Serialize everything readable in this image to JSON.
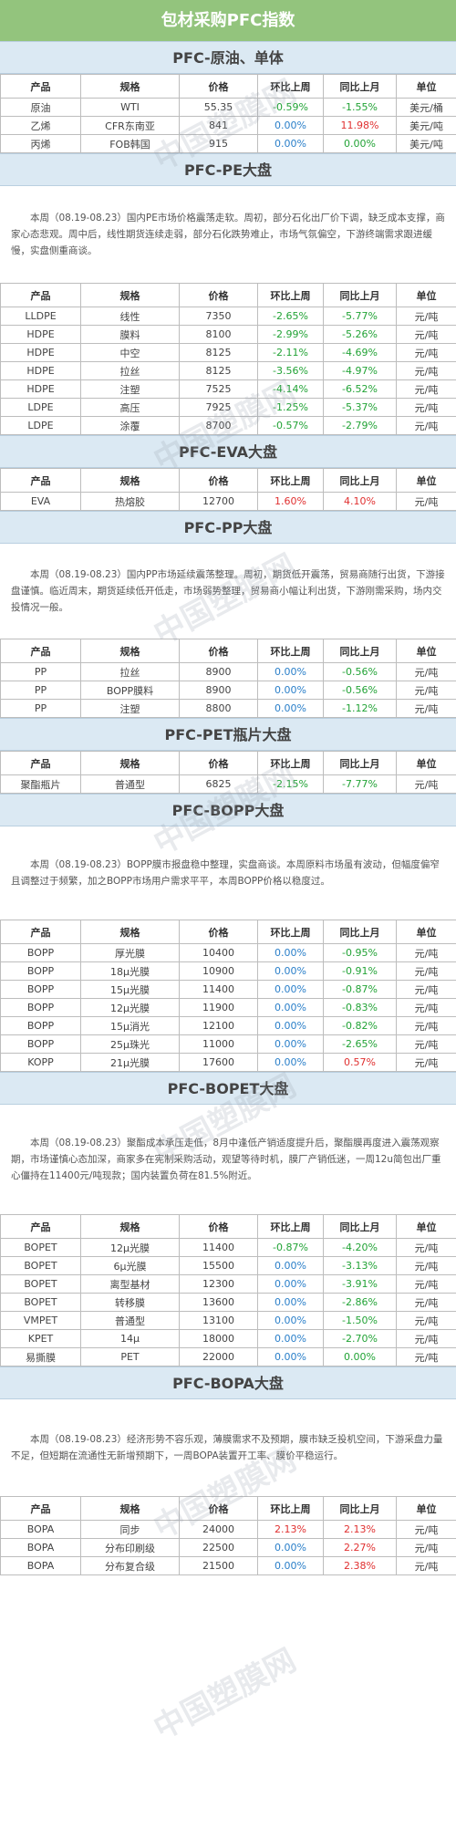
{
  "title": "包材采购PFC指数",
  "watermark": "中国塑膜网",
  "headers": [
    "产品",
    "规格",
    "价格",
    "环比上周",
    "同比上月",
    "单位"
  ],
  "sections": [
    {
      "title": "PFC-原油、单体",
      "intro": "",
      "rows": [
        [
          "原油",
          "WTI",
          "55.35",
          "-0.59%",
          "-1.55%",
          "美元/桶"
        ],
        [
          "乙烯",
          "CFR东南亚",
          "841",
          "0.00%",
          "11.98%",
          "美元/吨"
        ],
        [
          "丙烯",
          "FOB韩国",
          "915",
          "0.00%",
          "0.00%",
          "美元/吨"
        ]
      ]
    },
    {
      "title": "PFC-PE大盘",
      "intro": "本周（08.19-08.23）国内PE市场价格震荡走软。周初，部分石化出厂价下调，缺乏成本支撑，商家心态悲观。周中后，线性期货连续走弱，部分石化跌势难止，市场气氛偏空，下游终端需求跟进缓慢，实盘侧重商谈。",
      "rows": [
        [
          "LLDPE",
          "线性",
          "7350",
          "-2.65%",
          "-5.77%",
          "元/吨"
        ],
        [
          "HDPE",
          "膜料",
          "8100",
          "-2.99%",
          "-5.26%",
          "元/吨"
        ],
        [
          "HDPE",
          "中空",
          "8125",
          "-2.11%",
          "-4.69%",
          "元/吨"
        ],
        [
          "HDPE",
          "拉丝",
          "8125",
          "-3.56%",
          "-4.97%",
          "元/吨"
        ],
        [
          "HDPE",
          "注塑",
          "7525",
          "-4.14%",
          "-6.52%",
          "元/吨"
        ],
        [
          "LDPE",
          "高压",
          "7925",
          "-1.25%",
          "-5.37%",
          "元/吨"
        ],
        [
          "LDPE",
          "涂覆",
          "8700",
          "-0.57%",
          "-2.79%",
          "元/吨"
        ]
      ]
    },
    {
      "title": "PFC-EVA大盘",
      "intro": "",
      "rows": [
        [
          "EVA",
          "热熔胶",
          "12700",
          "1.60%",
          "4.10%",
          "元/吨"
        ]
      ]
    },
    {
      "title": "PFC-PP大盘",
      "intro": "本周（08.19-08.23）国内PP市场延续震荡整理。周初，期货低开震荡，贸易商随行出货，下游接盘谨慎。临近周末，期货延续低开低走，市场弱势整理，贸易商小幅让利出货，下游刚需采购，场内交投情况一般。",
      "rows": [
        [
          "PP",
          "拉丝",
          "8900",
          "0.00%",
          "-0.56%",
          "元/吨"
        ],
        [
          "PP",
          "BOPP膜料",
          "8900",
          "0.00%",
          "-0.56%",
          "元/吨"
        ],
        [
          "PP",
          "注塑",
          "8800",
          "0.00%",
          "-1.12%",
          "元/吨"
        ]
      ]
    },
    {
      "title": "PFC-PET瓶片大盘",
      "intro": "",
      "rows": [
        [
          "聚酯瓶片",
          "普通型",
          "6825",
          "-2.15%",
          "-7.77%",
          "元/吨"
        ]
      ]
    },
    {
      "title": "PFC-BOPP大盘",
      "intro": "本周（08.19-08.23）BOPP膜市报盘稳中整理，实盘商谈。本周原料市场虽有波动，但幅度偏窄且调整过于频繁，加之BOPP市场用户需求平平，本周BOPP价格以稳度过。",
      "rows": [
        [
          "BOPP",
          "厚光膜",
          "10400",
          "0.00%",
          "-0.95%",
          "元/吨"
        ],
        [
          "BOPP",
          "18μ光膜",
          "10900",
          "0.00%",
          "-0.91%",
          "元/吨"
        ],
        [
          "BOPP",
          "15μ光膜",
          "11400",
          "0.00%",
          "-0.87%",
          "元/吨"
        ],
        [
          "BOPP",
          "12μ光膜",
          "11900",
          "0.00%",
          "-0.83%",
          "元/吨"
        ],
        [
          "BOPP",
          "15μ消光",
          "12100",
          "0.00%",
          "-0.82%",
          "元/吨"
        ],
        [
          "BOPP",
          "25μ珠光",
          "11000",
          "0.00%",
          "-2.65%",
          "元/吨"
        ],
        [
          "KOPP",
          "21μ光膜",
          "17600",
          "0.00%",
          "0.57%",
          "元/吨"
        ]
      ]
    },
    {
      "title": "PFC-BOPET大盘",
      "intro": "本周（08.19-08.23）聚酯成本承压走低，8月中逢低产销适度提升后，聚酯膜再度进入震荡观察期，市场谨慎心态加深，商家多在宪制采购活动，观望等待时机，膜厂产销低迷，一周12u简包出厂重心僵持在11400元/吨现款；国内装置负荷在81.5%附近。",
      "rows": [
        [
          "BOPET",
          "12μ光膜",
          "11400",
          "-0.87%",
          "-4.20%",
          "元/吨"
        ],
        [
          "BOPET",
          "6μ光膜",
          "15500",
          "0.00%",
          "-3.13%",
          "元/吨"
        ],
        [
          "BOPET",
          "离型基材",
          "12300",
          "0.00%",
          "-3.91%",
          "元/吨"
        ],
        [
          "BOPET",
          "转移膜",
          "13600",
          "0.00%",
          "-2.86%",
          "元/吨"
        ],
        [
          "VMPET",
          "普通型",
          "13100",
          "0.00%",
          "-1.50%",
          "元/吨"
        ],
        [
          "KPET",
          "14μ",
          "18000",
          "0.00%",
          "-2.70%",
          "元/吨"
        ],
        [
          "易撕膜",
          "PET",
          "22000",
          "0.00%",
          "0.00%",
          "元/吨"
        ]
      ]
    },
    {
      "title": "PFC-BOPA大盘",
      "intro": "本周（08.19-08.23）经济形势不容乐观，薄膜需求不及预期，膜市缺乏投机空间，下游采盘力量不足，但短期在流通性无新增预期下，一周BOPA装置开工率、膜价平稳运行。",
      "rows": [
        [
          "BOPA",
          "同步",
          "24000",
          "2.13%",
          "2.13%",
          "元/吨"
        ],
        [
          "BOPA",
          "分布印刷级",
          "22500",
          "0.00%",
          "2.27%",
          "元/吨"
        ],
        [
          "BOPA",
          "分布复合级",
          "21500",
          "0.00%",
          "2.38%",
          "元/吨"
        ]
      ]
    }
  ]
}
